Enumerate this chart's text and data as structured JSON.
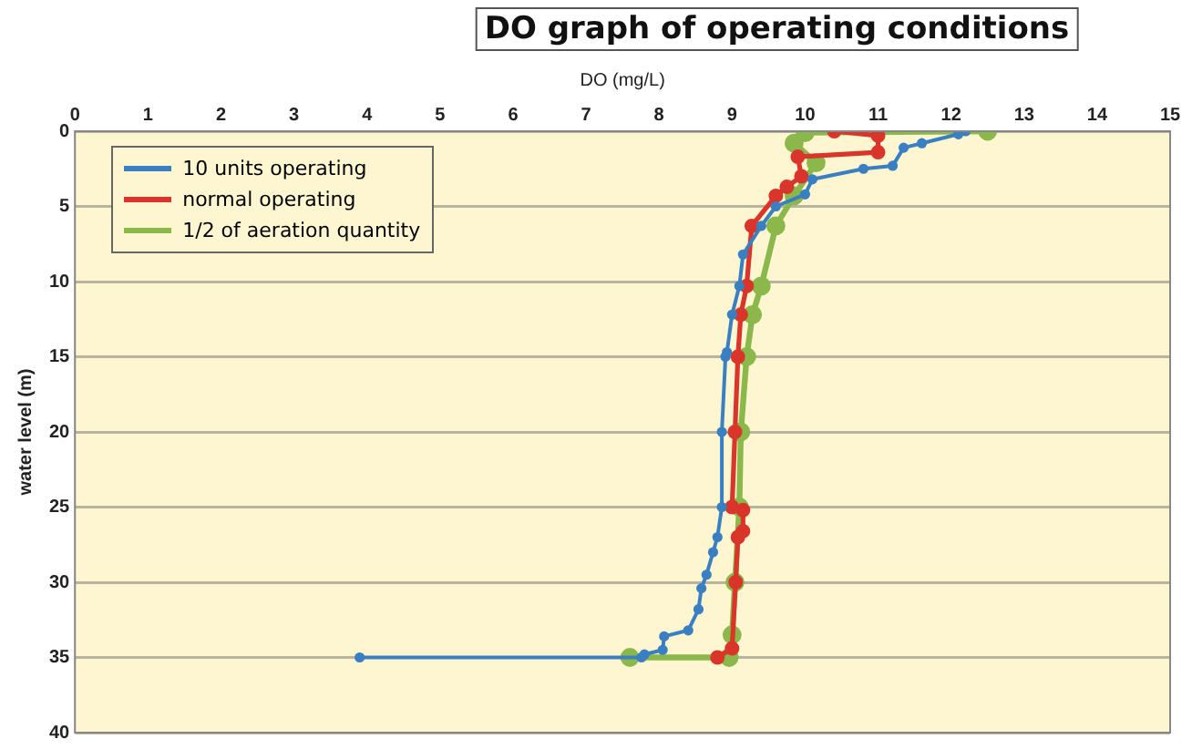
{
  "chart_data": {
    "type": "line",
    "title": "DO graph of operating conditions",
    "xlabel": "DO (mg/L)",
    "ylabel": "water level (m)",
    "xlim": [
      0,
      15
    ],
    "xticks": [
      0,
      1,
      2,
      3,
      4,
      5,
      6,
      7,
      8,
      9,
      10,
      11,
      12,
      13,
      14,
      15
    ],
    "ylim": [
      40,
      0
    ],
    "yticks": [
      0,
      5,
      10,
      15,
      20,
      25,
      30,
      35,
      40
    ],
    "grid": "y",
    "legend": "top left",
    "marker": "circle",
    "line_style": "solid",
    "series": [
      {
        "name": "10 units operating",
        "color": "#3a7fc1",
        "x": [
          12.2,
          12.1,
          11.6,
          11.35,
          11.2,
          10.8,
          10.1,
          10.0,
          9.6,
          9.4,
          9.15,
          9.1,
          9.0,
          8.93,
          8.91,
          8.86,
          8.86,
          8.8,
          8.74,
          8.65,
          8.58,
          8.54,
          8.4,
          8.07,
          8.05,
          7.8,
          7.76,
          3.9
        ],
        "values": [
          0,
          0.2,
          0.8,
          1.1,
          2.3,
          2.5,
          3.2,
          4.2,
          5,
          6.3,
          8.2,
          10.3,
          12.2,
          14.7,
          15,
          20,
          25,
          27,
          28,
          29.5,
          30.4,
          31.8,
          33.2,
          33.6,
          34.5,
          34.8,
          35,
          35
        ]
      },
      {
        "name": "normal operating",
        "color": "#d9352a",
        "x": [
          10.4,
          11.0,
          11.0,
          9.9,
          9.95,
          9.75,
          9.6,
          9.27,
          9.2,
          9.12,
          9.08,
          9.04,
          9.0,
          9.15,
          9.15,
          9.08,
          9.05,
          9.0,
          8.8
        ],
        "values": [
          0,
          0.3,
          1.4,
          1.7,
          3.0,
          3.7,
          4.3,
          6.3,
          10.3,
          12.2,
          15,
          20,
          25,
          25.2,
          26.6,
          27,
          30,
          34.4,
          35
        ]
      },
      {
        "name": "1/2 of aeration quantity",
        "color": "#8ab84a",
        "x": [
          12.5,
          10.0,
          9.85,
          10.15,
          9.85,
          9.6,
          9.4,
          9.28,
          9.2,
          9.12,
          9.1,
          9.04,
          9.0,
          8.96,
          7.6
        ],
        "values": [
          0,
          0.1,
          0.8,
          2.1,
          4.3,
          6.3,
          10.3,
          12.2,
          15,
          20,
          25,
          30,
          33.5,
          35,
          35
        ]
      }
    ]
  }
}
